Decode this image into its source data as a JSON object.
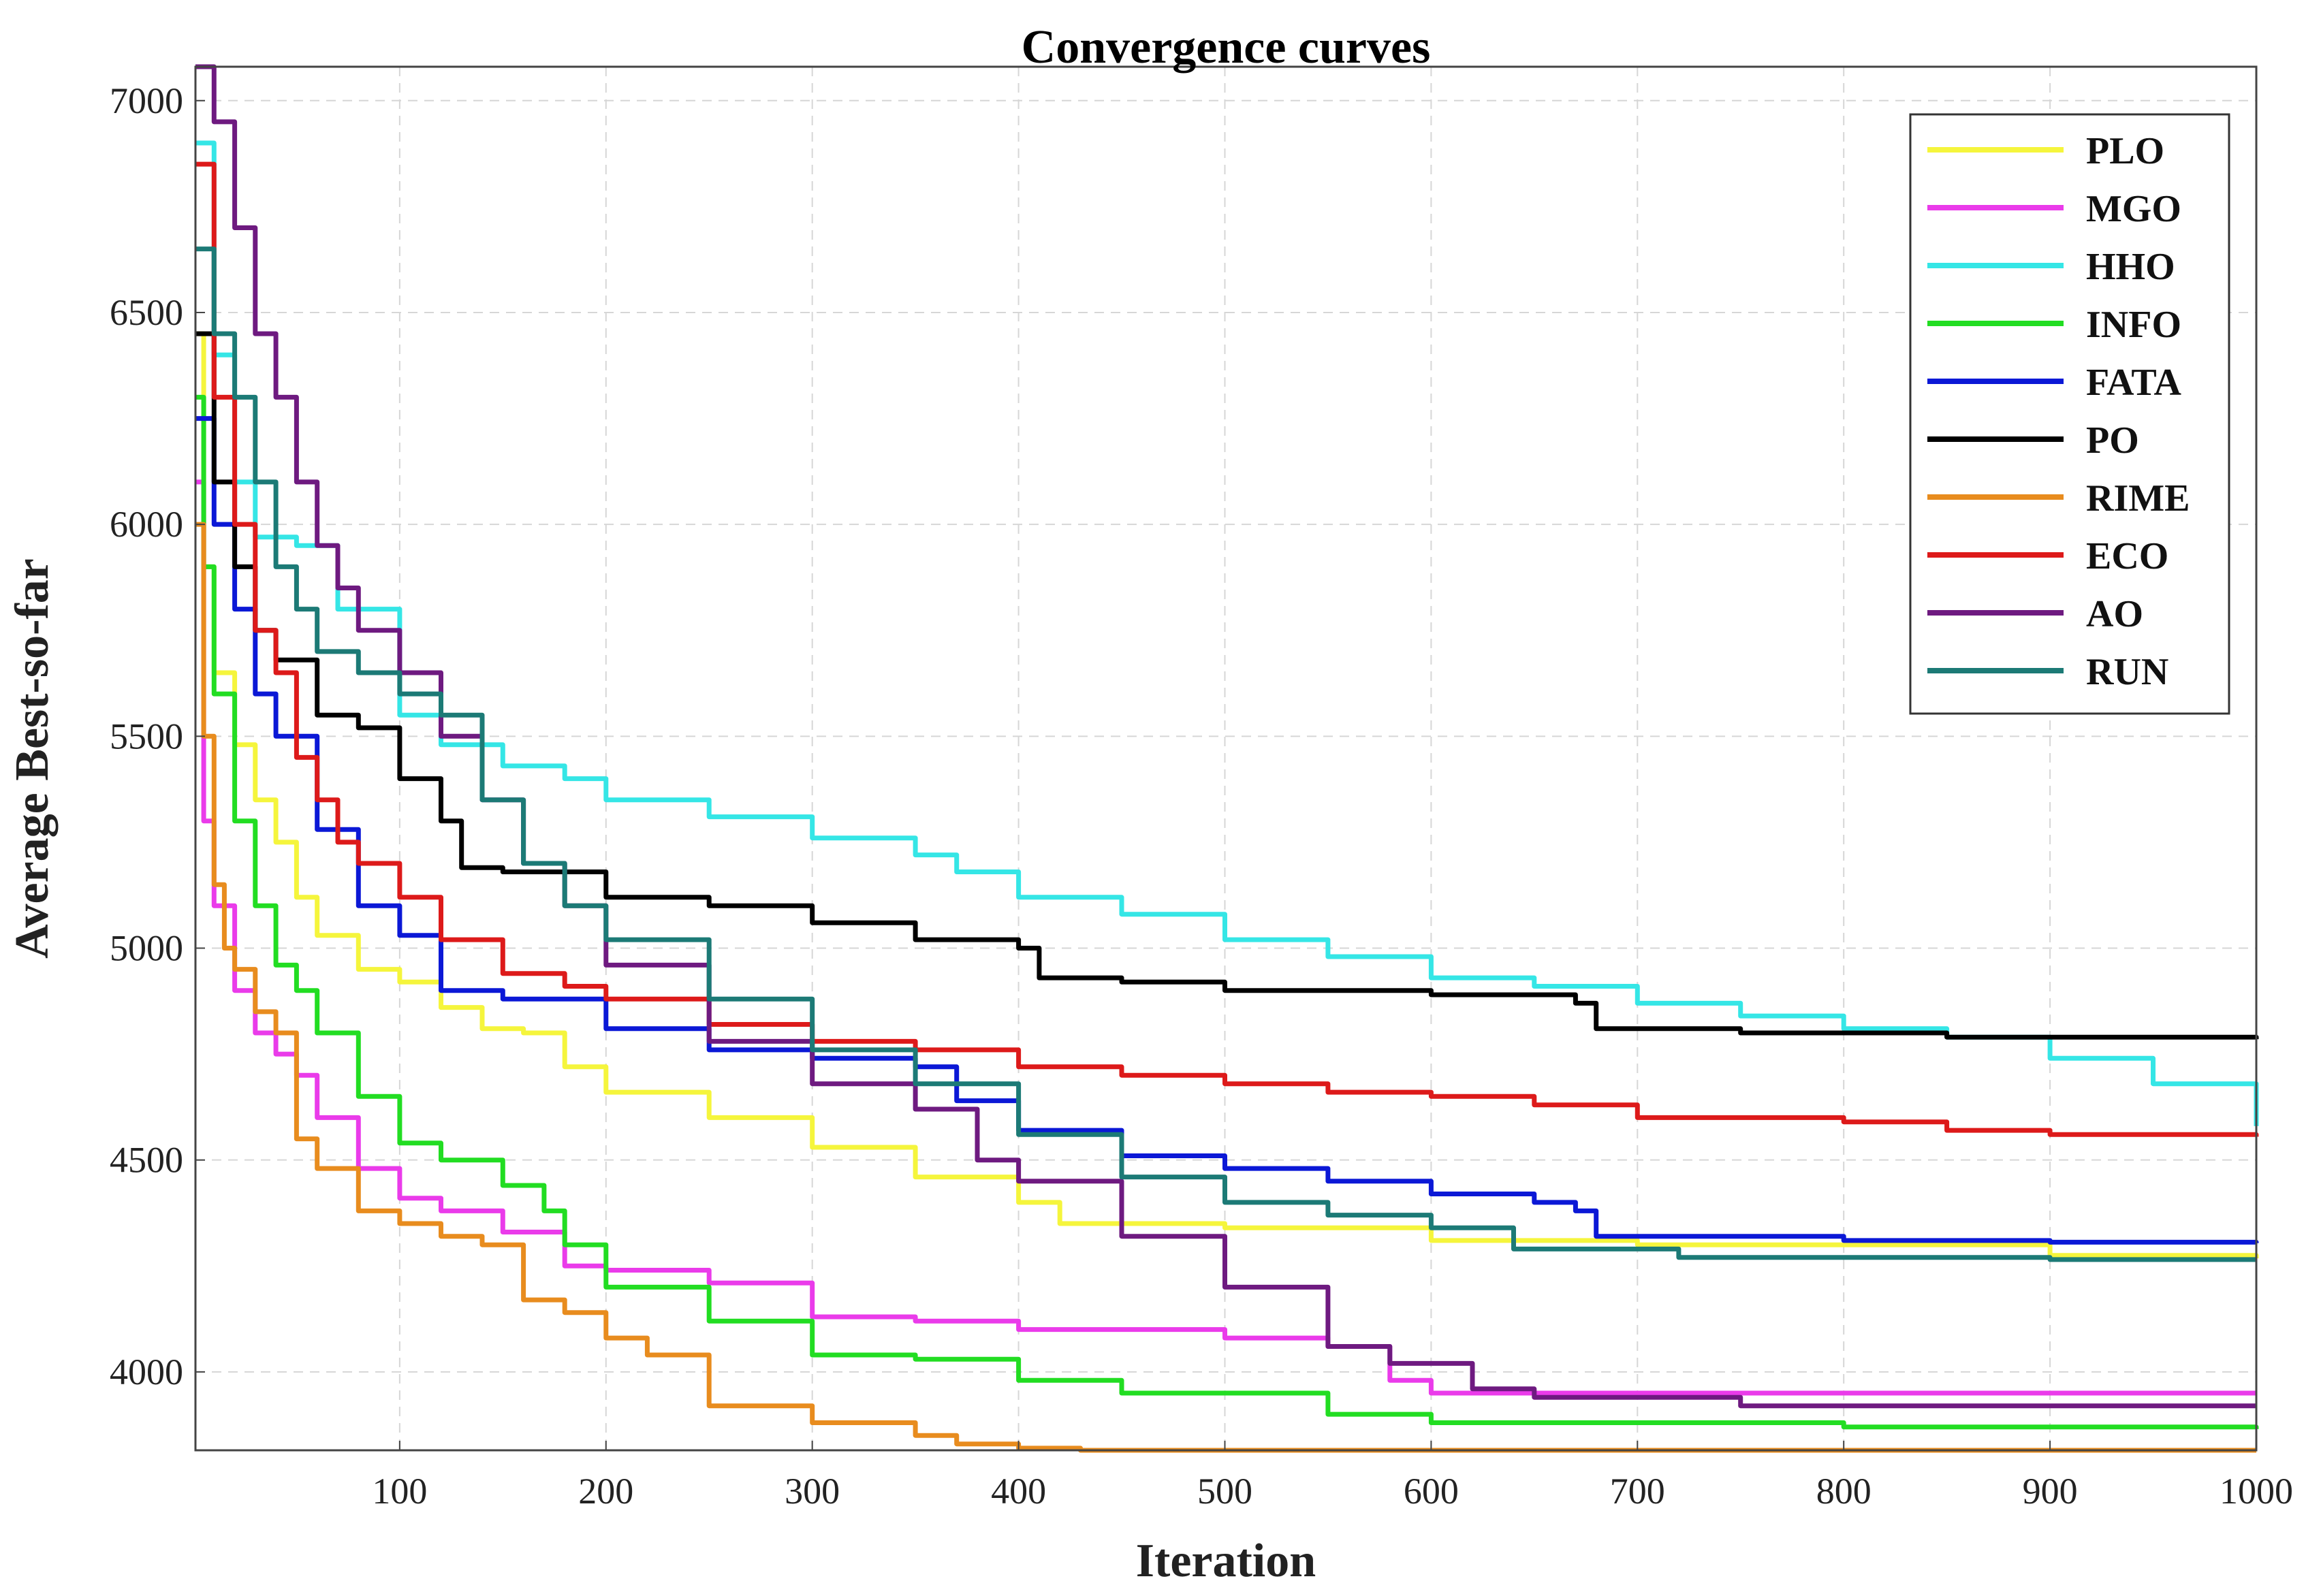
{
  "chart_data": {
    "type": "line",
    "title": "Convergence curves",
    "xlabel": "Iteration",
    "ylabel": "Average Best-so-far",
    "xlim": [
      1,
      1000
    ],
    "ylim": [
      3815,
      7080
    ],
    "xticks": [
      100,
      200,
      300,
      400,
      500,
      600,
      700,
      800,
      900,
      1000
    ],
    "yticks": [
      4000,
      4500,
      5000,
      5500,
      6000,
      6500,
      7000
    ],
    "grid": true,
    "legend_position": "top-right",
    "series": [
      {
        "name": "PLO",
        "color": "#f5f53c",
        "points": [
          [
            1,
            6450
          ],
          [
            5,
            5900
          ],
          [
            10,
            5650
          ],
          [
            20,
            5480
          ],
          [
            30,
            5350
          ],
          [
            40,
            5250
          ],
          [
            50,
            5120
          ],
          [
            60,
            5030
          ],
          [
            80,
            4950
          ],
          [
            100,
            4920
          ],
          [
            120,
            4860
          ],
          [
            140,
            4810
          ],
          [
            160,
            4800
          ],
          [
            180,
            4720
          ],
          [
            200,
            4660
          ],
          [
            250,
            4600
          ],
          [
            300,
            4530
          ],
          [
            350,
            4460
          ],
          [
            400,
            4400
          ],
          [
            420,
            4350
          ],
          [
            500,
            4340
          ],
          [
            600,
            4310
          ],
          [
            700,
            4300
          ],
          [
            800,
            4300
          ],
          [
            900,
            4275
          ],
          [
            1000,
            4268
          ]
        ]
      },
      {
        "name": "MGO",
        "color": "#ea3bea",
        "points": [
          [
            1,
            6100
          ],
          [
            5,
            5300
          ],
          [
            10,
            5100
          ],
          [
            20,
            4900
          ],
          [
            30,
            4800
          ],
          [
            40,
            4750
          ],
          [
            50,
            4700
          ],
          [
            60,
            4600
          ],
          [
            80,
            4480
          ],
          [
            100,
            4410
          ],
          [
            120,
            4380
          ],
          [
            150,
            4330
          ],
          [
            180,
            4250
          ],
          [
            200,
            4240
          ],
          [
            250,
            4210
          ],
          [
            300,
            4130
          ],
          [
            350,
            4120
          ],
          [
            400,
            4100
          ],
          [
            500,
            4080
          ],
          [
            550,
            4060
          ],
          [
            580,
            3980
          ],
          [
            600,
            3950
          ],
          [
            700,
            3950
          ],
          [
            800,
            3950
          ],
          [
            1000,
            3950
          ]
        ]
      },
      {
        "name": "HHO",
        "color": "#35e6e6",
        "points": [
          [
            1,
            6900
          ],
          [
            10,
            6400
          ],
          [
            20,
            6100
          ],
          [
            30,
            5970
          ],
          [
            50,
            5950
          ],
          [
            70,
            5800
          ],
          [
            100,
            5550
          ],
          [
            120,
            5480
          ],
          [
            150,
            5430
          ],
          [
            180,
            5400
          ],
          [
            200,
            5350
          ],
          [
            250,
            5310
          ],
          [
            300,
            5260
          ],
          [
            350,
            5220
          ],
          [
            370,
            5180
          ],
          [
            400,
            5120
          ],
          [
            450,
            5080
          ],
          [
            500,
            5020
          ],
          [
            550,
            4980
          ],
          [
            600,
            4930
          ],
          [
            650,
            4910
          ],
          [
            700,
            4870
          ],
          [
            750,
            4840
          ],
          [
            800,
            4810
          ],
          [
            850,
            4790
          ],
          [
            900,
            4740
          ],
          [
            950,
            4680
          ],
          [
            1000,
            4580
          ]
        ]
      },
      {
        "name": "INFO",
        "color": "#22dd22",
        "points": [
          [
            1,
            6300
          ],
          [
            5,
            5900
          ],
          [
            10,
            5600
          ],
          [
            20,
            5300
          ],
          [
            30,
            5100
          ],
          [
            40,
            4960
          ],
          [
            50,
            4900
          ],
          [
            60,
            4800
          ],
          [
            80,
            4650
          ],
          [
            100,
            4540
          ],
          [
            120,
            4500
          ],
          [
            150,
            4440
          ],
          [
            170,
            4380
          ],
          [
            180,
            4300
          ],
          [
            200,
            4200
          ],
          [
            250,
            4120
          ],
          [
            300,
            4040
          ],
          [
            350,
            4030
          ],
          [
            400,
            3980
          ],
          [
            450,
            3950
          ],
          [
            500,
            3950
          ],
          [
            550,
            3900
          ],
          [
            600,
            3880
          ],
          [
            700,
            3880
          ],
          [
            800,
            3870
          ],
          [
            900,
            3870
          ],
          [
            1000,
            3865
          ]
        ]
      },
      {
        "name": "FATA",
        "color": "#0b18d6",
        "points": [
          [
            1,
            6250
          ],
          [
            10,
            6000
          ],
          [
            20,
            5800
          ],
          [
            30,
            5600
          ],
          [
            40,
            5500
          ],
          [
            60,
            5280
          ],
          [
            80,
            5100
          ],
          [
            100,
            5030
          ],
          [
            120,
            4900
          ],
          [
            150,
            4880
          ],
          [
            180,
            4880
          ],
          [
            200,
            4810
          ],
          [
            250,
            4760
          ],
          [
            300,
            4740
          ],
          [
            350,
            4720
          ],
          [
            370,
            4640
          ],
          [
            400,
            4570
          ],
          [
            450,
            4510
          ],
          [
            500,
            4480
          ],
          [
            550,
            4450
          ],
          [
            600,
            4420
          ],
          [
            650,
            4400
          ],
          [
            670,
            4380
          ],
          [
            680,
            4320
          ],
          [
            800,
            4310
          ],
          [
            900,
            4306
          ],
          [
            1000,
            4304
          ]
        ]
      },
      {
        "name": "PO",
        "color": "#000000",
        "points": [
          [
            1,
            6450
          ],
          [
            10,
            6100
          ],
          [
            20,
            5900
          ],
          [
            30,
            5750
          ],
          [
            40,
            5680
          ],
          [
            60,
            5550
          ],
          [
            80,
            5520
          ],
          [
            100,
            5400
          ],
          [
            120,
            5300
          ],
          [
            130,
            5190
          ],
          [
            150,
            5180
          ],
          [
            180,
            5180
          ],
          [
            200,
            5120
          ],
          [
            250,
            5100
          ],
          [
            300,
            5060
          ],
          [
            350,
            5020
          ],
          [
            400,
            5000
          ],
          [
            410,
            4930
          ],
          [
            450,
            4920
          ],
          [
            500,
            4900
          ],
          [
            600,
            4890
          ],
          [
            650,
            4890
          ],
          [
            670,
            4870
          ],
          [
            680,
            4810
          ],
          [
            750,
            4800
          ],
          [
            850,
            4790
          ],
          [
            1000,
            4785
          ]
        ]
      },
      {
        "name": "RIME",
        "color": "#e88c1e",
        "points": [
          [
            1,
            6000
          ],
          [
            5,
            5500
          ],
          [
            10,
            5150
          ],
          [
            15,
            5000
          ],
          [
            20,
            4950
          ],
          [
            30,
            4850
          ],
          [
            40,
            4800
          ],
          [
            50,
            4550
          ],
          [
            60,
            4480
          ],
          [
            80,
            4380
          ],
          [
            100,
            4350
          ],
          [
            120,
            4320
          ],
          [
            140,
            4300
          ],
          [
            160,
            4170
          ],
          [
            180,
            4140
          ],
          [
            200,
            4080
          ],
          [
            220,
            4040
          ],
          [
            250,
            3920
          ],
          [
            300,
            3880
          ],
          [
            350,
            3850
          ],
          [
            370,
            3830
          ],
          [
            400,
            3820
          ],
          [
            430,
            3815
          ],
          [
            500,
            3815
          ],
          [
            1000,
            3815
          ]
        ]
      },
      {
        "name": "ECO",
        "color": "#dd1a1a",
        "points": [
          [
            1,
            6850
          ],
          [
            10,
            6300
          ],
          [
            20,
            6000
          ],
          [
            30,
            5750
          ],
          [
            40,
            5650
          ],
          [
            50,
            5450
          ],
          [
            60,
            5350
          ],
          [
            70,
            5250
          ],
          [
            80,
            5200
          ],
          [
            100,
            5120
          ],
          [
            120,
            5020
          ],
          [
            150,
            4940
          ],
          [
            180,
            4910
          ],
          [
            200,
            4880
          ],
          [
            250,
            4820
          ],
          [
            300,
            4780
          ],
          [
            350,
            4760
          ],
          [
            400,
            4720
          ],
          [
            450,
            4700
          ],
          [
            500,
            4680
          ],
          [
            550,
            4660
          ],
          [
            600,
            4650
          ],
          [
            650,
            4630
          ],
          [
            700,
            4600
          ],
          [
            800,
            4590
          ],
          [
            850,
            4570
          ],
          [
            900,
            4560
          ],
          [
            1000,
            4555
          ]
        ]
      },
      {
        "name": "AO",
        "color": "#6e1a80",
        "points": [
          [
            1,
            7080
          ],
          [
            10,
            6950
          ],
          [
            20,
            6700
          ],
          [
            30,
            6450
          ],
          [
            40,
            6300
          ],
          [
            50,
            6100
          ],
          [
            60,
            5950
          ],
          [
            70,
            5850
          ],
          [
            80,
            5750
          ],
          [
            100,
            5650
          ],
          [
            120,
            5500
          ],
          [
            140,
            5350
          ],
          [
            160,
            5200
          ],
          [
            180,
            5100
          ],
          [
            200,
            4960
          ],
          [
            250,
            4780
          ],
          [
            300,
            4680
          ],
          [
            350,
            4620
          ],
          [
            380,
            4500
          ],
          [
            400,
            4450
          ],
          [
            450,
            4320
          ],
          [
            500,
            4200
          ],
          [
            550,
            4060
          ],
          [
            580,
            4020
          ],
          [
            620,
            3960
          ],
          [
            650,
            3940
          ],
          [
            700,
            3940
          ],
          [
            750,
            3920
          ],
          [
            800,
            3920
          ],
          [
            1000,
            3920
          ]
        ]
      },
      {
        "name": "RUN",
        "color": "#1c7a76",
        "points": [
          [
            1,
            6650
          ],
          [
            10,
            6450
          ],
          [
            20,
            6300
          ],
          [
            30,
            6100
          ],
          [
            40,
            5900
          ],
          [
            50,
            5800
          ],
          [
            60,
            5700
          ],
          [
            80,
            5650
          ],
          [
            100,
            5600
          ],
          [
            120,
            5550
          ],
          [
            140,
            5350
          ],
          [
            160,
            5200
          ],
          [
            180,
            5100
          ],
          [
            200,
            5020
          ],
          [
            250,
            4880
          ],
          [
            300,
            4760
          ],
          [
            350,
            4680
          ],
          [
            400,
            4560
          ],
          [
            450,
            4460
          ],
          [
            500,
            4400
          ],
          [
            550,
            4370
          ],
          [
            600,
            4340
          ],
          [
            640,
            4290
          ],
          [
            700,
            4290
          ],
          [
            720,
            4270
          ],
          [
            800,
            4270
          ],
          [
            900,
            4265
          ],
          [
            1000,
            4265
          ]
        ]
      }
    ]
  }
}
